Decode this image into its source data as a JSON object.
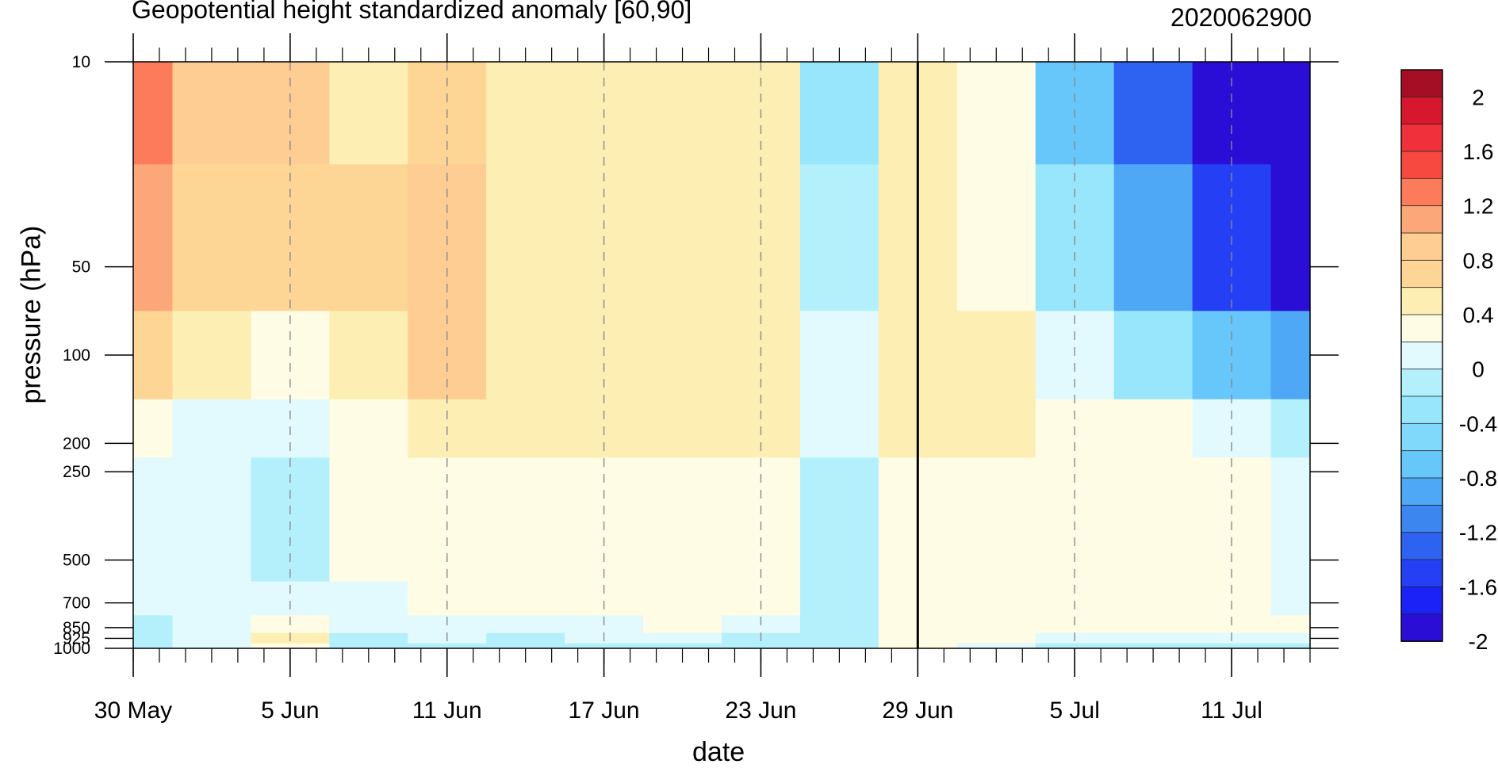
{
  "chart_data": {
    "type": "heatmap",
    "title": "Geopotential height standardized anomaly [60,90]",
    "subtitle": "2020062900",
    "xlabel": "date",
    "ylabel": "pressure (hPa)",
    "x_tick_labels": [
      "30 May",
      "5 Jun",
      "11 Jun",
      "17 Jun",
      "23 Jun",
      "29 Jun",
      "5 Jul",
      "11 Jul"
    ],
    "x_tick_days": [
      0,
      6,
      12,
      18,
      24,
      30,
      36,
      42
    ],
    "x_range_days": [
      0,
      45
    ],
    "current_day": 30,
    "y_tick_labels": [
      "10",
      "50",
      "100",
      "200",
      "250",
      "500",
      "700",
      "850",
      "925",
      "1000"
    ],
    "y_levels_hPa": [
      10,
      50,
      100,
      200,
      250,
      500,
      700,
      850,
      925,
      1000
    ],
    "y_scale": "log",
    "y_reversed": true,
    "colorbar_labels": [
      "2",
      "1.6",
      "1.2",
      "0.8",
      "0.4",
      "0",
      "-0.4",
      "-0.8",
      "-1.2",
      "-1.6",
      "-2"
    ],
    "colorbar_colors": [
      "#a50f25",
      "#d7172e",
      "#f0303a",
      "#f7493f",
      "#fb7b5b",
      "#fca77a",
      "#fdcd93",
      "#fdd595",
      "#fdeeb3",
      "#fefce5",
      "#e2fafd",
      "#b4f0fb",
      "#98e6fb",
      "#80d8fb",
      "#67c6fa",
      "#4ea8f6",
      "#3b86ef",
      "#2e62f0",
      "#2540f4",
      "#1b22f7",
      "#2a0ed6"
    ],
    "days": [
      0,
      3,
      6,
      9,
      12,
      15,
      18,
      21,
      24,
      27,
      30,
      33,
      36,
      39,
      42,
      45
    ],
    "values": [
      [
        1.4,
        1.0,
        0.9,
        0.5,
        0.7,
        0.6,
        0.6,
        0.5,
        0.5,
        -0.2,
        0.6,
        0.3,
        -0.6,
        -1.3,
        -2.0,
        -2.3
      ],
      [
        1.1,
        0.8,
        0.7,
        0.8,
        1.0,
        0.6,
        0.6,
        0.5,
        0.5,
        0.0,
        0.6,
        0.4,
        -0.3,
        -0.9,
        -1.4,
        -1.8
      ],
      [
        0.7,
        0.6,
        0.4,
        0.6,
        0.9,
        0.6,
        0.6,
        0.6,
        0.6,
        0.1,
        0.6,
        0.5,
        0.1,
        -0.3,
        -0.6,
        -0.9
      ],
      [
        0.4,
        0.2,
        0.1,
        0.4,
        0.5,
        0.5,
        0.5,
        0.5,
        0.5,
        0.1,
        0.5,
        0.5,
        0.4,
        0.3,
        0.1,
        -0.1
      ],
      [
        0.2,
        0.1,
        -0.1,
        0.3,
        0.4,
        0.4,
        0.4,
        0.4,
        0.4,
        -0.1,
        0.4,
        0.4,
        0.4,
        0.3,
        0.3,
        0.2
      ],
      [
        0.2,
        0.1,
        -0.1,
        0.3,
        0.4,
        0.4,
        0.4,
        0.4,
        0.4,
        0.0,
        0.3,
        0.4,
        0.4,
        0.3,
        0.3,
        0.2
      ],
      [
        0.1,
        0.1,
        0.1,
        0.2,
        0.3,
        0.3,
        0.3,
        0.4,
        0.4,
        0.0,
        0.3,
        0.4,
        0.4,
        0.3,
        0.3,
        0.2
      ],
      [
        0.0,
        0.2,
        0.3,
        0.1,
        0.2,
        0.1,
        0.2,
        0.3,
        0.1,
        0.0,
        0.3,
        0.4,
        0.3,
        0.3,
        0.3,
        0.3
      ],
      [
        0.0,
        0.1,
        0.5,
        0.0,
        0.1,
        0.0,
        0.1,
        0.1,
        0.0,
        -0.1,
        0.3,
        0.3,
        0.1,
        0.1,
        0.1,
        0.1
      ],
      [
        0.0,
        0.1,
        0.3,
        -0.1,
        -0.1,
        -0.1,
        0.0,
        0.0,
        -0.1,
        -0.1,
        0.3,
        0.2,
        0.0,
        0.0,
        -0.1,
        -0.1
      ]
    ]
  }
}
